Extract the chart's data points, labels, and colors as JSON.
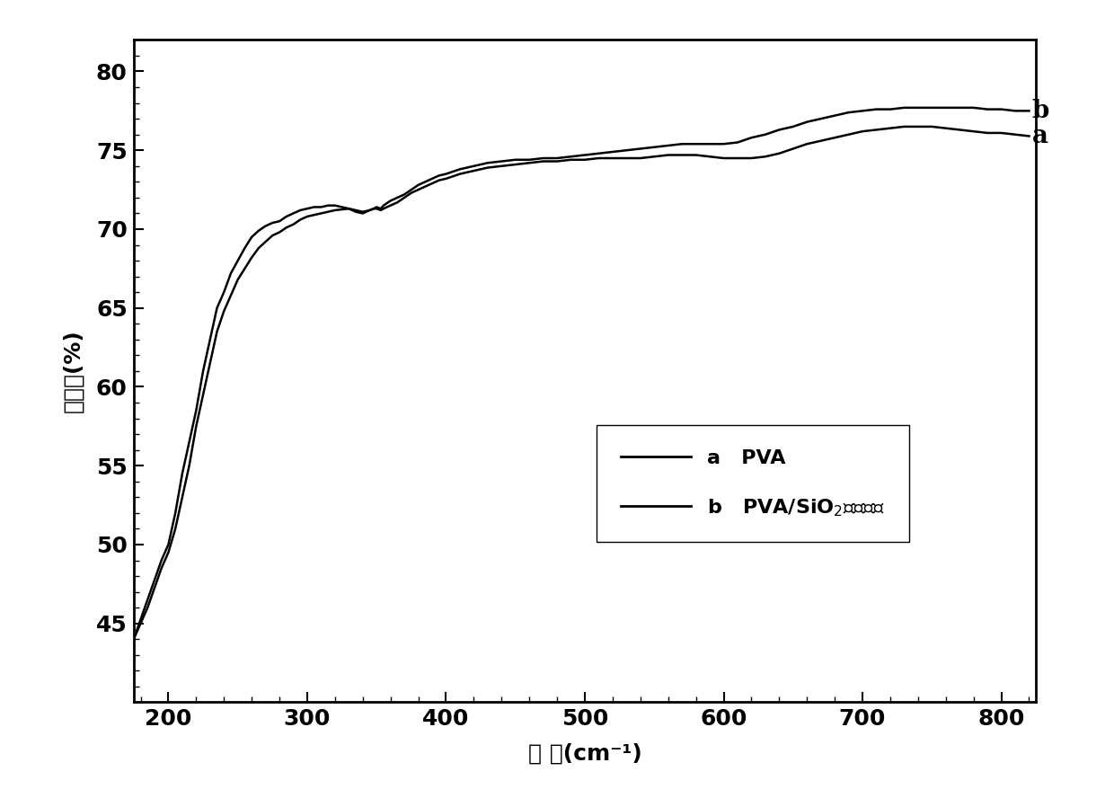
{
  "x_range": [
    175,
    825
  ],
  "y_range": [
    40,
    82
  ],
  "x_ticks": [
    200,
    300,
    400,
    500,
    600,
    700,
    800
  ],
  "y_ticks": [
    45,
    50,
    55,
    60,
    65,
    70,
    75,
    80
  ],
  "xlabel": "波 数(cm⁻¹)",
  "ylabel": "透过率(%)",
  "label_a": "a",
  "label_b": "b",
  "curve_color": "#000000",
  "background_color": "#ffffff",
  "curve_a_x": [
    175,
    185,
    195,
    200,
    205,
    210,
    215,
    220,
    225,
    230,
    235,
    240,
    245,
    250,
    255,
    260,
    265,
    270,
    275,
    280,
    285,
    290,
    295,
    300,
    305,
    310,
    315,
    320,
    325,
    330,
    335,
    340,
    345,
    348,
    350,
    353,
    355,
    360,
    365,
    370,
    375,
    380,
    385,
    390,
    395,
    400,
    410,
    420,
    430,
    440,
    450,
    460,
    470,
    480,
    490,
    500,
    510,
    520,
    530,
    540,
    550,
    560,
    570,
    580,
    590,
    600,
    610,
    620,
    630,
    640,
    650,
    660,
    670,
    680,
    690,
    700,
    710,
    720,
    730,
    740,
    750,
    760,
    770,
    780,
    790,
    800,
    810,
    820
  ],
  "curve_a_y": [
    44.0,
    46.0,
    48.5,
    49.5,
    51.0,
    53.0,
    55.0,
    57.5,
    59.5,
    61.5,
    63.5,
    64.8,
    65.8,
    66.8,
    67.5,
    68.2,
    68.8,
    69.2,
    69.6,
    69.8,
    70.1,
    70.3,
    70.6,
    70.8,
    70.9,
    71.0,
    71.1,
    71.2,
    71.25,
    71.3,
    71.2,
    71.1,
    71.2,
    71.3,
    71.3,
    71.2,
    71.3,
    71.5,
    71.7,
    72.0,
    72.3,
    72.5,
    72.7,
    72.9,
    73.1,
    73.2,
    73.5,
    73.7,
    73.9,
    74.0,
    74.1,
    74.2,
    74.3,
    74.3,
    74.4,
    74.4,
    74.5,
    74.5,
    74.5,
    74.5,
    74.6,
    74.7,
    74.7,
    74.7,
    74.6,
    74.5,
    74.5,
    74.5,
    74.6,
    74.8,
    75.1,
    75.4,
    75.6,
    75.8,
    76.0,
    76.2,
    76.3,
    76.4,
    76.5,
    76.5,
    76.5,
    76.4,
    76.3,
    76.2,
    76.1,
    76.1,
    76.0,
    75.9
  ],
  "curve_b_x": [
    175,
    185,
    195,
    200,
    205,
    210,
    215,
    220,
    225,
    230,
    235,
    240,
    245,
    250,
    255,
    260,
    265,
    270,
    275,
    280,
    285,
    290,
    295,
    300,
    305,
    310,
    315,
    320,
    325,
    330,
    335,
    340,
    345,
    348,
    350,
    353,
    355,
    360,
    365,
    370,
    375,
    380,
    385,
    390,
    395,
    400,
    410,
    420,
    430,
    440,
    450,
    460,
    470,
    480,
    490,
    500,
    510,
    520,
    530,
    540,
    550,
    560,
    570,
    580,
    590,
    600,
    610,
    620,
    630,
    640,
    650,
    660,
    670,
    680,
    690,
    700,
    710,
    720,
    730,
    740,
    750,
    760,
    770,
    780,
    790,
    800,
    810,
    820
  ],
  "curve_b_y": [
    44.0,
    46.5,
    49.0,
    50.0,
    52.0,
    54.5,
    56.5,
    58.5,
    61.0,
    63.0,
    65.0,
    66.0,
    67.2,
    68.0,
    68.8,
    69.5,
    69.9,
    70.2,
    70.4,
    70.5,
    70.8,
    71.0,
    71.2,
    71.3,
    71.4,
    71.4,
    71.5,
    71.5,
    71.4,
    71.3,
    71.1,
    71.0,
    71.2,
    71.3,
    71.4,
    71.3,
    71.5,
    71.8,
    72.0,
    72.2,
    72.5,
    72.8,
    73.0,
    73.2,
    73.4,
    73.5,
    73.8,
    74.0,
    74.2,
    74.3,
    74.4,
    74.4,
    74.5,
    74.5,
    74.6,
    74.7,
    74.8,
    74.9,
    75.0,
    75.1,
    75.2,
    75.3,
    75.4,
    75.4,
    75.4,
    75.4,
    75.5,
    75.8,
    76.0,
    76.3,
    76.5,
    76.8,
    77.0,
    77.2,
    77.4,
    77.5,
    77.6,
    77.6,
    77.7,
    77.7,
    77.7,
    77.7,
    77.7,
    77.7,
    77.6,
    77.6,
    77.5,
    77.5
  ]
}
